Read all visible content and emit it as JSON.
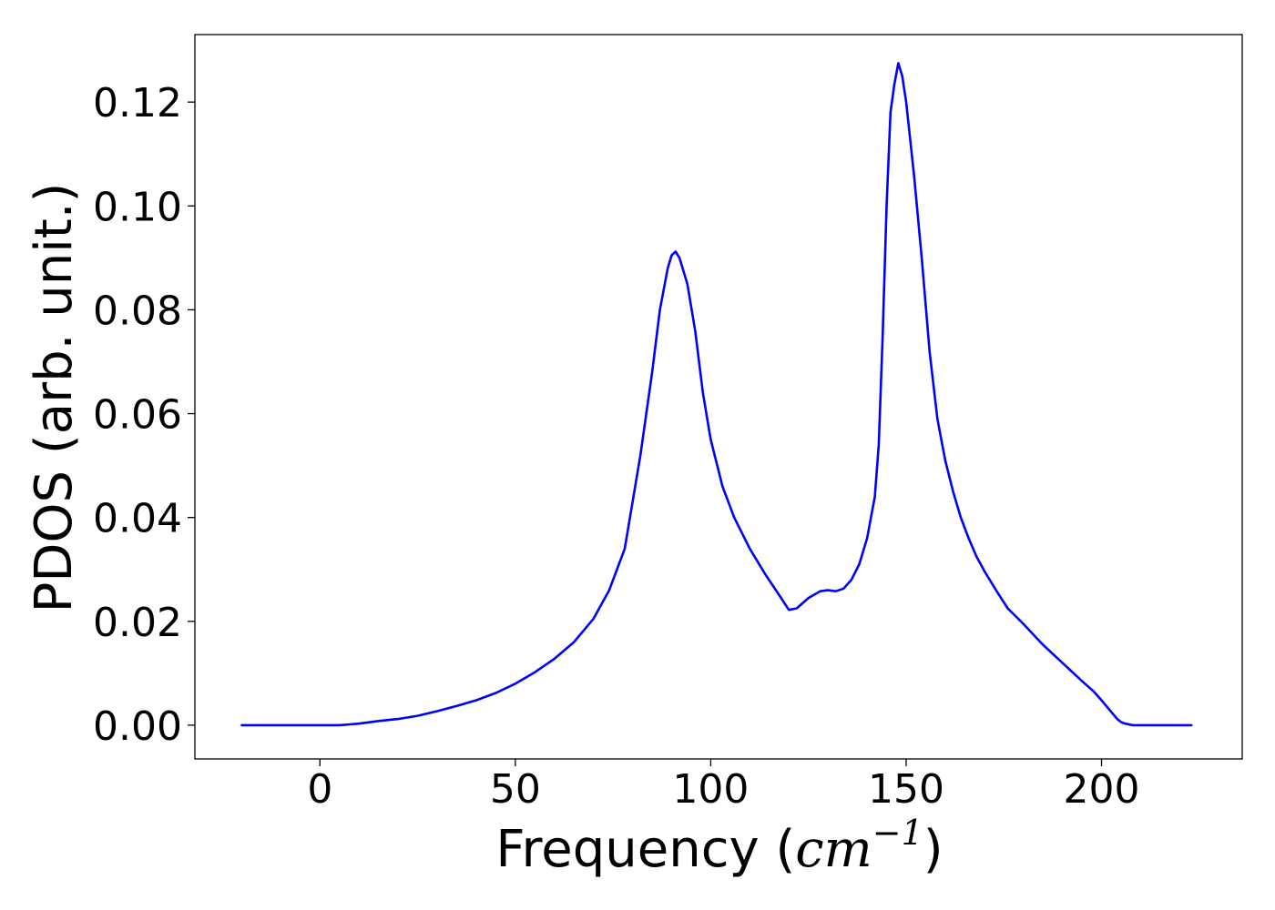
{
  "chart_data": {
    "type": "line",
    "title": "",
    "xlabel_text": "Frequency (",
    "xlabel_math_base": "cm",
    "xlabel_math_sup": "−1",
    "xlabel_close": ")",
    "ylabel": "PDOS (arb. unit.)",
    "xlim": [
      -32,
      236
    ],
    "ylim": [
      -0.0065,
      0.133
    ],
    "xticks": [
      0,
      50,
      100,
      150,
      200
    ],
    "xtick_labels": [
      "0",
      "50",
      "100",
      "150",
      "200"
    ],
    "yticks": [
      0.0,
      0.02,
      0.04,
      0.06,
      0.08,
      0.1,
      0.12
    ],
    "ytick_labels": [
      "0.00",
      "0.02",
      "0.04",
      "0.06",
      "0.08",
      "0.10",
      "0.12"
    ],
    "grid": false,
    "legend": "none",
    "series": [
      {
        "color": "#0000ff",
        "x": [
          -20,
          -10,
          0,
          5,
          10,
          15,
          20,
          25,
          30,
          35,
          40,
          45,
          50,
          55,
          60,
          65,
          70,
          74,
          78,
          82,
          85,
          87,
          89,
          90,
          91,
          92,
          94,
          96,
          98,
          100,
          103,
          106,
          110,
          114,
          118,
          120,
          122,
          125,
          128,
          130,
          132,
          134,
          136,
          138,
          140,
          142,
          143,
          144,
          145,
          146,
          147,
          148,
          149,
          150,
          151,
          152,
          154,
          156,
          158,
          160,
          162,
          164,
          166,
          168,
          170,
          173,
          176,
          180,
          185,
          190,
          195,
          198,
          200,
          202,
          204,
          205,
          206,
          208,
          212,
          216,
          223
        ],
        "y": [
          0.0,
          0.0,
          0.0,
          0.0,
          0.0003,
          0.0008,
          0.0012,
          0.0018,
          0.0027,
          0.0037,
          0.0048,
          0.0062,
          0.008,
          0.0102,
          0.0128,
          0.016,
          0.0205,
          0.026,
          0.034,
          0.052,
          0.068,
          0.08,
          0.088,
          0.0905,
          0.0912,
          0.09,
          0.085,
          0.076,
          0.064,
          0.055,
          0.046,
          0.04,
          0.034,
          0.029,
          0.0245,
          0.0222,
          0.0225,
          0.0245,
          0.0258,
          0.026,
          0.0258,
          0.0263,
          0.028,
          0.031,
          0.036,
          0.044,
          0.054,
          0.075,
          0.1,
          0.118,
          0.1235,
          0.1275,
          0.125,
          0.12,
          0.113,
          0.106,
          0.09,
          0.072,
          0.059,
          0.051,
          0.045,
          0.04,
          0.036,
          0.0325,
          0.0297,
          0.026,
          0.0225,
          0.0195,
          0.0155,
          0.012,
          0.0085,
          0.0065,
          0.0048,
          0.003,
          0.0012,
          0.0006,
          0.0003,
          0.0,
          0.0,
          0.0,
          0.0
        ]
      }
    ]
  }
}
